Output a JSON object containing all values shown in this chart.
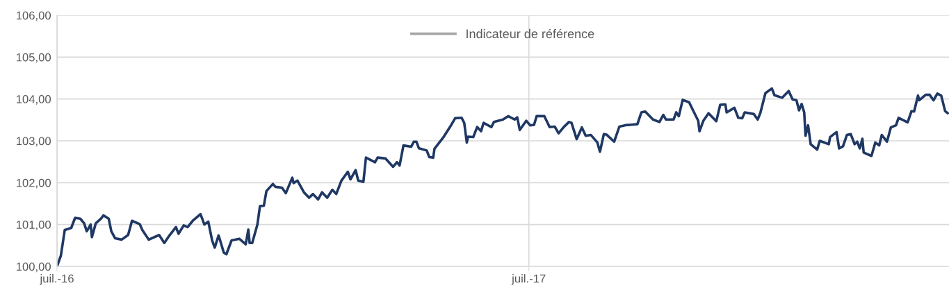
{
  "chart_data": {
    "type": "line",
    "x": [
      "2016-07-01",
      "2016-07-04",
      "2016-07-07",
      "2016-07-12",
      "2016-07-15",
      "2016-07-19",
      "2016-07-22",
      "2016-07-24",
      "2016-07-27",
      "2016-07-28",
      "2016-07-31",
      "2016-08-04",
      "2016-08-06",
      "2016-08-10",
      "2016-08-12",
      "2016-08-15",
      "2016-08-20",
      "2016-08-25",
      "2016-08-28",
      "2016-09-03",
      "2016-09-05",
      "2016-09-10",
      "2016-09-18",
      "2016-09-22",
      "2016-09-26",
      "2016-10-01",
      "2016-10-03",
      "2016-10-07",
      "2016-10-10",
      "2016-10-14",
      "2016-10-20",
      "2016-10-23",
      "2016-10-26",
      "2016-10-29",
      "2016-10-31",
      "2016-11-03",
      "2016-11-07",
      "2016-11-09",
      "2016-11-13",
      "2016-11-19",
      "2016-11-24",
      "2016-11-26",
      "2016-11-27",
      "2016-11-29",
      "2016-12-03",
      "2016-12-05",
      "2016-12-08",
      "2016-12-10",
      "2016-12-15",
      "2016-12-17",
      "2016-12-22",
      "2016-12-25",
      "2016-12-30",
      "2016-12-31",
      "2017-01-03",
      "2017-01-08",
      "2017-01-12",
      "2017-01-15",
      "2017-01-19",
      "2017-01-22",
      "2017-01-26",
      "2017-01-30",
      "2017-02-02",
      "2017-02-06",
      "2017-02-11",
      "2017-02-13",
      "2017-02-17",
      "2017-02-19",
      "2017-02-23",
      "2017-02-25",
      "2017-03-04",
      "2017-03-06",
      "2017-03-12",
      "2017-03-18",
      "2017-03-21",
      "2017-03-23",
      "2017-03-26",
      "2017-04-01",
      "2017-04-03",
      "2017-04-05",
      "2017-04-07",
      "2017-04-13",
      "2017-04-15",
      "2017-04-18",
      "2017-04-19",
      "2017-04-26",
      "2017-05-01",
      "2017-05-05",
      "2017-05-10",
      "2017-05-12",
      "2017-05-14",
      "2017-05-15",
      "2017-05-19",
      "2017-05-22",
      "2017-05-25",
      "2017-05-27",
      "2017-06-02",
      "2017-06-04",
      "2017-06-11",
      "2017-06-15",
      "2017-06-20",
      "2017-06-22",
      "2017-06-24",
      "2017-06-29",
      "2017-07-02",
      "2017-07-05",
      "2017-07-07",
      "2017-07-13",
      "2017-07-17",
      "2017-07-21",
      "2017-07-24",
      "2017-07-28",
      "2017-08-01",
      "2017-08-03",
      "2017-08-07",
      "2017-08-11",
      "2017-08-14",
      "2017-08-18",
      "2017-08-23",
      "2017-08-25",
      "2017-08-28",
      "2017-08-30",
      "2017-09-05",
      "2017-09-09",
      "2017-09-15",
      "2017-09-17",
      "2017-09-23",
      "2017-09-26",
      "2017-09-29",
      "2017-10-05",
      "2017-10-10",
      "2017-10-13",
      "2017-10-15",
      "2017-10-21",
      "2017-10-23",
      "2017-10-25",
      "2017-10-28",
      "2017-11-02",
      "2017-11-05",
      "2017-11-09",
      "2017-11-10",
      "2017-11-13",
      "2017-11-17",
      "2017-11-23",
      "2017-11-26",
      "2017-11-30",
      "2017-12-01",
      "2017-12-07",
      "2017-12-10",
      "2017-12-13",
      "2017-12-15",
      "2017-12-22",
      "2017-12-25",
      "2017-12-27",
      "2017-12-31",
      "2018-01-05",
      "2018-01-07",
      "2018-01-13",
      "2018-01-18",
      "2018-01-21",
      "2018-01-24",
      "2018-01-26",
      "2018-01-28",
      "2018-01-30",
      "2018-01-31",
      "2018-02-02",
      "2018-02-04",
      "2018-02-09",
      "2018-02-11",
      "2018-02-18",
      "2018-02-19",
      "2018-02-24",
      "2018-02-26",
      "2018-03-01",
      "2018-03-04",
      "2018-03-07",
      "2018-03-10",
      "2018-03-12",
      "2018-03-14",
      "2018-03-16",
      "2018-03-17",
      "2018-03-23",
      "2018-03-26",
      "2018-03-29",
      "2018-03-31",
      "2018-04-04",
      "2018-04-07",
      "2018-04-11",
      "2018-04-13",
      "2018-04-20",
      "2018-04-23",
      "2018-04-25",
      "2018-04-28",
      "2018-04-29",
      "2018-05-04",
      "2018-05-07",
      "2018-05-10",
      "2018-05-13",
      "2018-05-16",
      "2018-05-19",
      "2018-05-21"
    ],
    "series": [
      {
        "color": "#1f3864",
        "values": [
          100.0,
          100.26,
          100.87,
          100.92,
          101.16,
          101.14,
          101.03,
          100.84,
          101.0,
          100.7,
          101.03,
          101.14,
          101.22,
          101.14,
          100.84,
          100.67,
          100.64,
          100.75,
          101.09,
          101.01,
          100.87,
          100.64,
          100.75,
          100.56,
          100.74,
          100.94,
          100.78,
          100.98,
          100.94,
          101.09,
          101.25,
          101.0,
          101.07,
          100.62,
          100.45,
          100.74,
          100.33,
          100.29,
          100.62,
          100.66,
          100.53,
          100.88,
          100.56,
          100.56,
          101.0,
          101.44,
          101.45,
          101.8,
          101.97,
          101.9,
          101.88,
          101.75,
          102.12,
          101.99,
          102.05,
          101.77,
          101.64,
          101.73,
          101.6,
          101.77,
          101.64,
          101.83,
          101.73,
          102.05,
          102.26,
          102.08,
          102.3,
          102.05,
          102.02,
          102.6,
          102.49,
          102.6,
          102.58,
          102.38,
          102.49,
          102.41,
          102.89,
          102.86,
          102.98,
          102.98,
          102.82,
          102.77,
          102.61,
          102.6,
          102.81,
          103.09,
          103.33,
          103.54,
          103.55,
          103.43,
          102.96,
          103.1,
          103.09,
          103.33,
          103.23,
          103.43,
          103.33,
          103.45,
          103.51,
          103.59,
          103.51,
          103.56,
          103.26,
          103.48,
          103.37,
          103.38,
          103.59,
          103.59,
          103.33,
          103.34,
          103.18,
          103.33,
          103.45,
          103.43,
          103.04,
          103.32,
          103.12,
          103.14,
          102.96,
          102.74,
          103.16,
          103.15,
          102.98,
          103.34,
          103.38,
          103.38,
          103.4,
          103.68,
          103.7,
          103.51,
          103.45,
          103.62,
          103.51,
          103.51,
          103.68,
          103.59,
          103.98,
          103.92,
          103.73,
          103.48,
          103.23,
          103.48,
          103.66,
          103.47,
          103.86,
          103.87,
          103.68,
          103.79,
          103.55,
          103.54,
          103.68,
          103.64,
          103.51,
          103.66,
          104.14,
          104.25,
          104.09,
          104.03,
          104.19,
          103.99,
          103.97,
          103.73,
          103.88,
          103.68,
          103.12,
          103.37,
          102.92,
          102.79,
          103.0,
          102.92,
          103.09,
          103.21,
          102.82,
          102.87,
          103.14,
          103.16,
          102.92,
          102.98,
          102.82,
          103.05,
          102.72,
          102.64,
          102.96,
          102.89,
          103.14,
          102.98,
          103.32,
          103.37,
          103.55,
          103.44,
          103.71,
          103.7,
          104.08,
          103.97,
          104.1,
          104.1,
          103.97,
          104.13,
          104.08,
          103.71,
          103.66
        ]
      },
      {
        "name": "Indicateur de référence",
        "color": "#a6a6a6",
        "values": [
          null,
          null,
          null,
          null,
          null,
          null,
          null,
          null,
          null,
          null,
          null,
          null,
          null,
          null,
          null,
          null,
          null,
          null,
          null,
          null,
          null,
          null,
          null,
          null,
          null,
          null,
          null,
          null,
          null,
          null,
          null,
          null,
          null,
          null,
          null,
          null,
          null,
          null,
          null,
          null,
          null,
          null,
          null,
          null,
          null,
          null,
          null,
          null,
          null,
          null,
          null,
          null,
          null,
          null,
          null,
          null,
          null,
          null,
          null,
          null,
          null,
          null,
          null,
          null,
          null,
          null,
          null,
          null,
          null,
          null,
          null,
          null,
          null,
          null,
          null,
          null,
          null,
          null,
          null,
          null,
          null,
          null,
          null,
          null,
          null,
          null,
          null,
          null,
          null,
          null,
          null,
          null,
          null,
          null,
          null,
          null,
          null,
          null,
          null,
          null,
          null,
          null,
          null,
          null,
          null,
          null,
          null,
          null,
          null,
          null,
          null,
          null,
          null,
          null,
          null,
          null,
          null,
          null,
          null,
          null,
          null,
          null,
          null,
          null,
          null,
          null,
          null,
          null,
          null,
          null,
          null,
          null,
          null,
          null,
          null,
          null,
          null,
          null,
          null,
          null,
          null,
          null,
          null,
          null,
          null,
          null,
          null,
          null,
          null,
          null,
          null,
          null,
          null,
          null,
          null,
          null,
          null,
          null,
          null,
          null,
          null,
          null,
          null,
          null,
          null,
          null,
          null,
          null,
          null,
          null,
          null,
          null,
          null,
          null,
          null,
          null,
          null,
          null,
          null,
          null,
          null,
          null,
          null,
          null,
          null,
          null,
          null,
          null,
          null,
          null,
          null,
          null,
          null,
          null,
          null,
          null,
          null,
          null,
          null,
          null,
          null
        ]
      }
    ],
    "xlim": [
      "2016-07-01",
      "2018-05-22"
    ],
    "xticks": [
      {
        "value": "2016-07-01",
        "label": "juil.-16"
      },
      {
        "value": "2017-07-01",
        "label": "juil.-17"
      }
    ],
    "ylim": [
      100,
      106
    ],
    "yticks": [
      {
        "value": 100,
        "label": "100,00"
      },
      {
        "value": 101,
        "label": "101,00"
      },
      {
        "value": 102,
        "label": "102,00"
      },
      {
        "value": 103,
        "label": "103,00"
      },
      {
        "value": 104,
        "label": "104,00"
      },
      {
        "value": 105,
        "label": "105,00"
      },
      {
        "value": 106,
        "label": "106,00"
      }
    ],
    "grid": true,
    "legend": "top",
    "line_style": "solid",
    "marker": "none"
  }
}
